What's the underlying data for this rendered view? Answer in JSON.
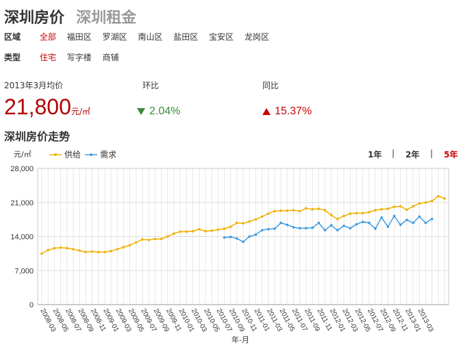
{
  "tabs": {
    "active": "深圳房价",
    "inactive": "深圳租金"
  },
  "filters": {
    "region_label": "区域",
    "regions": [
      "全部",
      "福田区",
      "罗湖区",
      "南山区",
      "盐田区",
      "宝安区",
      "龙岗区"
    ],
    "type_label": "类型",
    "types": [
      "住宅",
      "写字楼",
      "商铺"
    ]
  },
  "stats": {
    "avg_label": "2013年3月均价",
    "mom_label": "环比",
    "yoy_label": "同比",
    "avg_value": "21,800",
    "avg_unit": "元/㎡",
    "mom_value": "2.04%",
    "yoy_value": "15.37%"
  },
  "section_title": "深圳房价走势",
  "ranges": [
    "1年",
    "2年",
    "5年"
  ],
  "chart_data": {
    "type": "line",
    "y_unit": "元/㎡",
    "xlabel": "年-月",
    "ylim": [
      0,
      28000
    ],
    "yticks": [
      "0",
      "7,000",
      "14,000",
      "21,000",
      "28,000"
    ],
    "x_tick_labels": [
      "2008-03",
      "2008-05",
      "2008-07",
      "2008-09",
      "2008-11",
      "2009-01",
      "2009-03",
      "2009-05",
      "2009-07",
      "2009-09",
      "2009-11",
      "2010-01",
      "2010-03",
      "2010-05",
      "2010-07",
      "2010-09",
      "2010-11",
      "2011-01",
      "2011-03",
      "2011-05",
      "2011-07",
      "2011-09",
      "2011-11",
      "2012-01",
      "2012-03",
      "2012-05",
      "2012-07",
      "2012-09",
      "2012-11",
      "2013-01",
      "2013-03"
    ],
    "grid": true,
    "legend_position": "top-left",
    "series": [
      {
        "name": "供给",
        "color": "#f0b000",
        "start_index": 0,
        "values": [
          10500,
          11200,
          11600,
          11700,
          11600,
          11400,
          11100,
          10800,
          10900,
          10800,
          10800,
          11000,
          11400,
          11800,
          12200,
          12800,
          13400,
          13300,
          13500,
          13500,
          14000,
          14600,
          15000,
          15000,
          15100,
          15500,
          15100,
          15200,
          15400,
          15600,
          16000,
          16800,
          16700,
          17100,
          17500,
          18100,
          18700,
          19200,
          19300,
          19300,
          19400,
          19200,
          19800,
          19600,
          19700,
          19400,
          18400,
          17600,
          18200,
          18700,
          18800,
          18800,
          19000,
          19400,
          19600,
          19700,
          20100,
          20200,
          19500,
          20200,
          20800,
          21000,
          21300,
          22300,
          21800
        ]
      },
      {
        "name": "需求",
        "color": "#3d9be0",
        "start_index": 29,
        "values": [
          13800,
          13900,
          13600,
          12900,
          14000,
          14400,
          15300,
          15500,
          15600,
          16800,
          16400,
          15900,
          15700,
          15700,
          15800,
          16800,
          15300,
          16300,
          15300,
          16200,
          15700,
          16500,
          17000,
          16800,
          15600,
          17900,
          16000,
          18200,
          16400,
          17400,
          16800,
          18100,
          16800,
          17600
        ]
      }
    ]
  },
  "colors": {
    "accent": "#c00000",
    "price": "#b30000",
    "down": "#3a8a3a",
    "up": "#cc0000"
  }
}
